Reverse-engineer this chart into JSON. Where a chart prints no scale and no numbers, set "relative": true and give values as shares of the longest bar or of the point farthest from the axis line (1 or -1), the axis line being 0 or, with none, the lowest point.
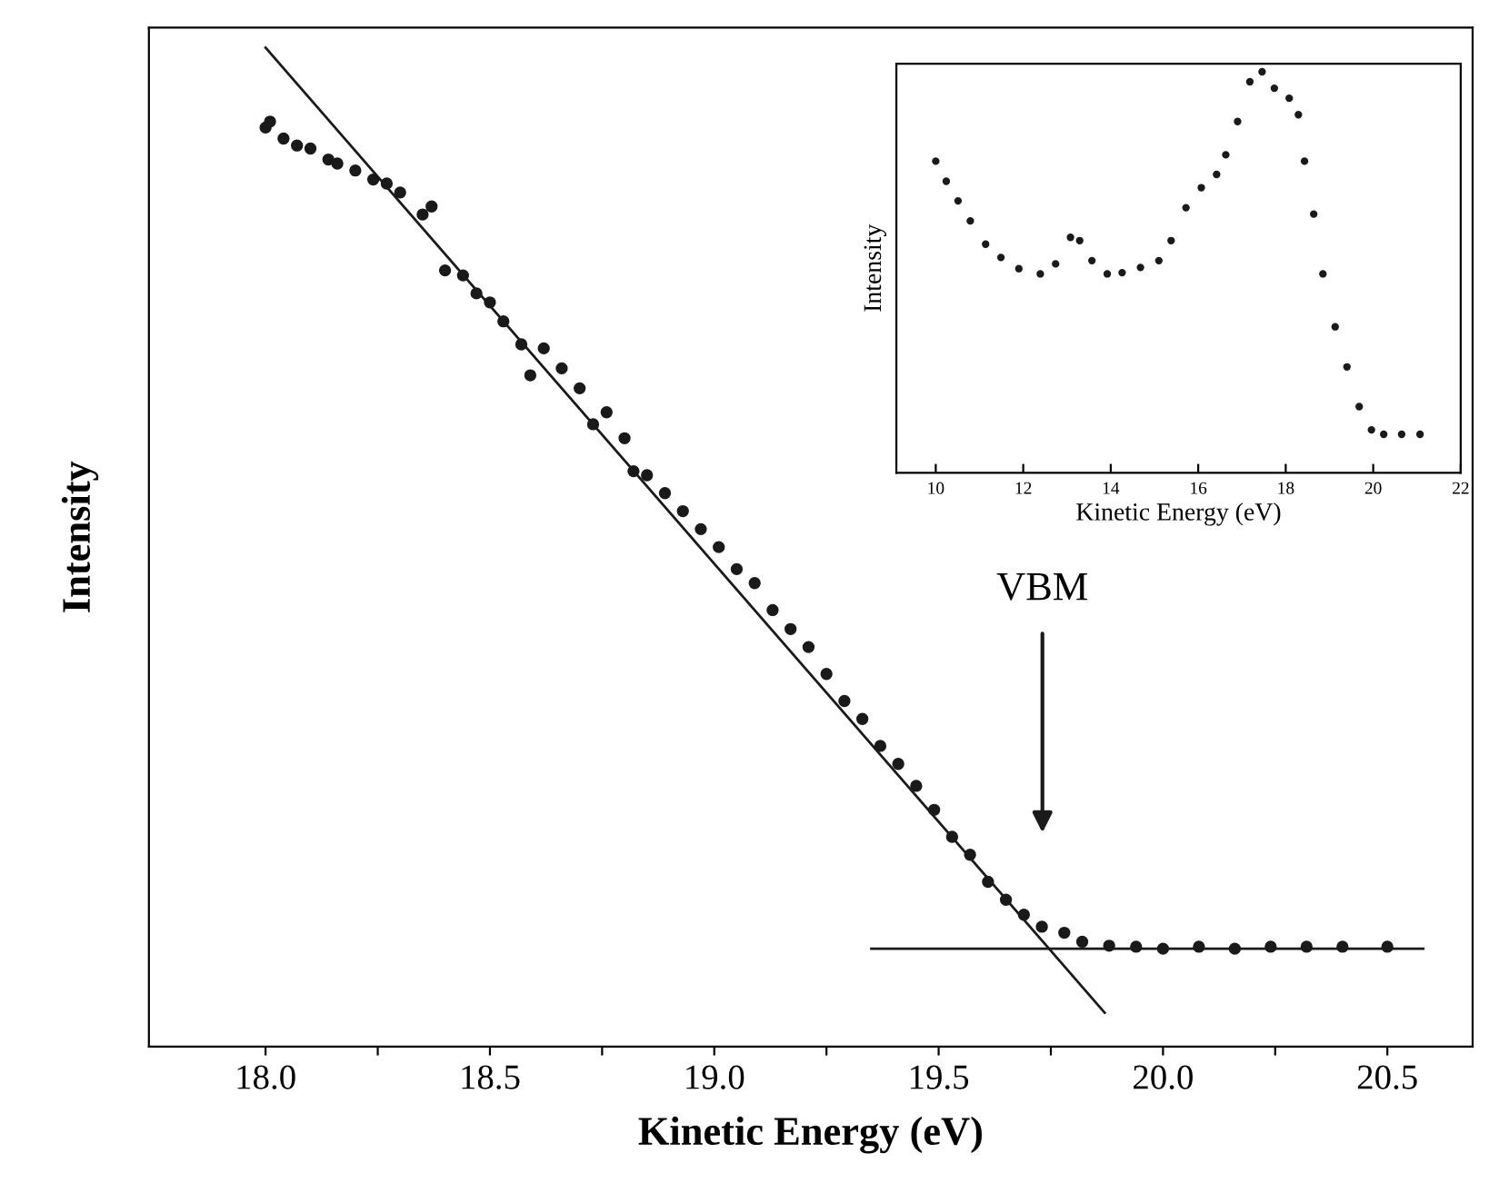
{
  "chart_data": [
    {
      "type": "scatter",
      "xlabel": "Kinetic Energy (eV)",
      "ylabel": "Intensity",
      "relative": true,
      "tick_labels": "x",
      "grid": false,
      "legend": false,
      "xlim": [
        17.74,
        20.69
      ],
      "xticks": [
        {
          "value": 18,
          "label": "18.0"
        },
        {
          "value": 18.25,
          "label": null
        },
        {
          "value": 18.5,
          "label": "18.5"
        },
        {
          "value": 18.75,
          "label": null
        },
        {
          "value": 19,
          "label": "19.0"
        },
        {
          "value": 19.25,
          "label": null
        },
        {
          "value": 19.5,
          "label": "19.5"
        },
        {
          "value": 19.75,
          "label": null
        },
        {
          "value": 20,
          "label": "20.0"
        },
        {
          "value": 20.25,
          "label": null
        },
        {
          "value": 20.5,
          "label": "20.5"
        }
      ],
      "annotations": [
        "VBM"
      ],
      "series": [
        {
          "marker": "circle",
          "color": "#1a1a1a",
          "x": [
            18.0,
            18.01,
            18.04,
            18.07,
            18.1,
            18.14,
            18.16,
            18.2,
            18.24,
            18.27,
            18.3,
            18.35,
            18.37,
            18.4,
            18.44,
            18.47,
            18.5,
            18.53,
            18.57,
            18.59,
            18.62,
            18.66,
            18.7,
            18.73,
            18.76,
            18.8,
            18.82,
            18.85,
            18.89,
            18.93,
            18.97,
            19.01,
            19.05,
            19.09,
            19.13,
            19.17,
            19.21,
            19.25,
            19.29,
            19.33,
            19.37,
            19.41,
            19.45,
            19.49,
            19.53,
            19.57,
            19.61,
            19.65,
            19.69,
            19.73,
            19.78,
            19.82,
            19.88,
            19.94,
            20.0,
            20.08,
            20.16,
            20.24,
            20.32,
            20.4,
            20.5
          ],
          "values": [
            0.92,
            0.926,
            0.909,
            0.902,
            0.899,
            0.888,
            0.884,
            0.877,
            0.868,
            0.864,
            0.855,
            0.833,
            0.841,
            0.777,
            0.772,
            0.754,
            0.745,
            0.726,
            0.703,
            0.672,
            0.699,
            0.679,
            0.659,
            0.623,
            0.635,
            0.609,
            0.576,
            0.572,
            0.554,
            0.536,
            0.518,
            0.5,
            0.478,
            0.464,
            0.437,
            0.418,
            0.4,
            0.373,
            0.346,
            0.328,
            0.301,
            0.283,
            0.261,
            0.237,
            0.21,
            0.192,
            0.165,
            0.147,
            0.132,
            0.12,
            0.114,
            0.105,
            0.101,
            0.1,
            0.098,
            0.1,
            0.098,
            0.1,
            0.1,
            0.1,
            0.1
          ]
        },
        {
          "type": "line",
          "color": "#1a1a1a",
          "x": [
            18.0,
            19.87
          ],
          "values": [
            1.0,
            0.034
          ]
        },
        {
          "type": "line",
          "color": "#1a1a1a",
          "x": [
            19.35,
            20.58
          ],
          "values": [
            0.098,
            0.098
          ]
        }
      ]
    },
    {
      "type": "scatter",
      "xlabel": "Kinetic Energy (eV)",
      "ylabel": "Intensity",
      "relative": true,
      "tick_labels": "x",
      "grid": false,
      "legend": false,
      "xlim": [
        9.1,
        22
      ],
      "xticks": [
        10,
        12,
        14,
        16,
        18,
        20,
        22
      ],
      "series": [
        {
          "marker": "circle",
          "color": "#1a1a1a",
          "x": [
            10.0,
            10.24,
            10.51,
            10.79,
            11.14,
            11.49,
            11.9,
            12.39,
            12.74,
            13.08,
            13.29,
            13.57,
            13.92,
            14.26,
            14.68,
            15.1,
            15.38,
            15.72,
            16.07,
            16.42,
            16.63,
            16.9,
            17.18,
            17.46,
            17.74,
            18.08,
            18.29,
            18.43,
            18.64,
            18.85,
            19.13,
            19.4,
            19.68,
            19.96,
            20.24,
            20.65,
            21.07
          ],
          "values": [
            0.777,
            0.727,
            0.678,
            0.628,
            0.57,
            0.537,
            0.509,
            0.496,
            0.521,
            0.587,
            0.579,
            0.529,
            0.496,
            0.499,
            0.512,
            0.529,
            0.579,
            0.661,
            0.711,
            0.744,
            0.793,
            0.876,
            0.975,
            1.0,
            0.959,
            0.934,
            0.893,
            0.777,
            0.645,
            0.496,
            0.364,
            0.264,
            0.165,
            0.107,
            0.096,
            0.096,
            0.096
          ]
        }
      ]
    }
  ]
}
